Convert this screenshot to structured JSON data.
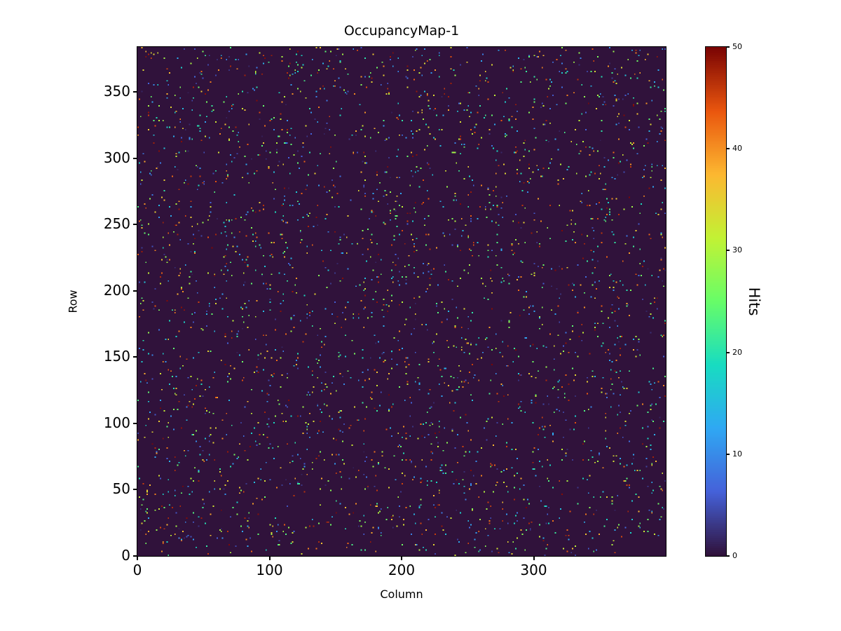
{
  "figure": {
    "title": "OccupancyMap-1"
  },
  "colors": {
    "background": "#ffffff",
    "axes": "#000000",
    "text": "#000000"
  },
  "chart_data": {
    "type": "heatmap",
    "title": "OccupancyMap-1",
    "xlabel": "Column",
    "ylabel": "Row",
    "colorbar_label": "Hits",
    "xlim": [
      0,
      400
    ],
    "ylim": [
      0,
      384
    ],
    "x_ticks": [
      0,
      100,
      200,
      300
    ],
    "y_ticks": [
      0,
      50,
      100,
      150,
      200,
      250,
      300,
      350
    ],
    "colorbar_ticks": [
      0,
      10,
      20,
      30,
      40,
      50
    ],
    "vmin": 0,
    "vmax": 50,
    "n_cols": 400,
    "n_rows": 384,
    "colormap": "turbo",
    "colormap_stops": [
      {
        "t": 0.0,
        "color": "#30123b"
      },
      {
        "t": 0.125,
        "color": "#4561d9"
      },
      {
        "t": 0.25,
        "color": "#2fa8f3"
      },
      {
        "t": 0.375,
        "color": "#18dcc1"
      },
      {
        "t": 0.5,
        "color": "#67fd68"
      },
      {
        "t": 0.625,
        "color": "#c2f234"
      },
      {
        "t": 0.75,
        "color": "#fcb831"
      },
      {
        "t": 0.875,
        "color": "#ea560e"
      },
      {
        "t": 1.0,
        "color": "#7a0403"
      }
    ],
    "background_value": 0,
    "data_description": "Sparse random detector occupancy: ~2% of pixels on a 400x384 grid carry a hit count between 1 and 50; all other pixels are 0 (dark background). Hits are uniformly scattered with uniformly distributed values.",
    "n_hits": 3200,
    "hit_value_range": [
      1,
      50
    ],
    "seed": 42,
    "grid": false,
    "legend_position": "colorbar-right"
  }
}
